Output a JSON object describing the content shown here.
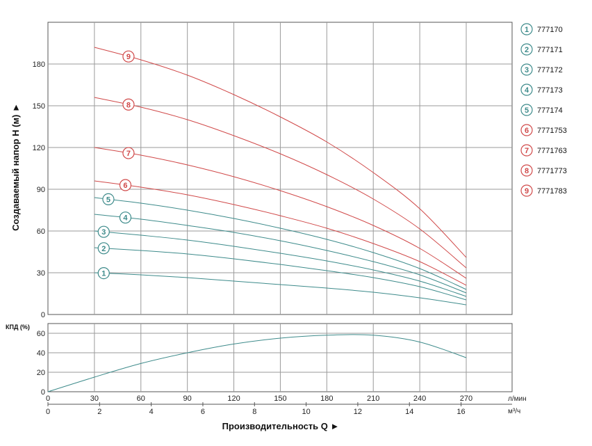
{
  "colors": {
    "blue": "#3c8a8a",
    "red": "#d04848",
    "grid": "#9a9a9a",
    "axis": "#555555"
  },
  "chart_data": [
    {
      "type": "line",
      "ylabel": "Создаваемый напор H (м) ►",
      "ylim": [
        0,
        200
      ],
      "yticks": [
        0,
        30,
        60,
        90,
        120,
        150,
        180
      ],
      "xlim": [
        0,
        270
      ],
      "x_unit": "л/мин",
      "grid": true,
      "legend_position": "right",
      "series": [
        {
          "name": "777170",
          "marker": "1",
          "color": "blue",
          "x": [
            30,
            60,
            90,
            120,
            150,
            180,
            210,
            240,
            270
          ],
          "y": [
            30,
            28.5,
            26.5,
            24,
            21.5,
            19,
            16,
            12,
            7
          ]
        },
        {
          "name": "777171",
          "marker": "2",
          "color": "blue",
          "x": [
            30,
            60,
            90,
            120,
            150,
            180,
            210,
            240,
            270
          ],
          "y": [
            48,
            46,
            43.5,
            40,
            36,
            31.5,
            26.5,
            20,
            10.5
          ]
        },
        {
          "name": "777172",
          "marker": "3",
          "color": "blue",
          "x": [
            30,
            60,
            90,
            120,
            150,
            180,
            210,
            240,
            270
          ],
          "y": [
            60,
            57,
            53.5,
            49,
            44,
            38.5,
            32,
            24,
            13
          ]
        },
        {
          "name": "777173",
          "marker": "4",
          "color": "blue",
          "x": [
            30,
            60,
            90,
            120,
            150,
            180,
            210,
            240,
            270
          ],
          "y": [
            72,
            68.5,
            64,
            59,
            53,
            46,
            38,
            28.5,
            15.5
          ]
        },
        {
          "name": "777174",
          "marker": "5",
          "color": "blue",
          "x": [
            30,
            60,
            90,
            120,
            150,
            180,
            210,
            240,
            270
          ],
          "y": [
            84,
            80,
            75,
            69,
            62,
            54,
            44.5,
            33,
            18
          ]
        },
        {
          "name": "7771753",
          "marker": "6",
          "color": "red",
          "x": [
            30,
            60,
            90,
            120,
            150,
            180,
            210,
            240,
            270
          ],
          "y": [
            96,
            91.5,
            86,
            79,
            71,
            62,
            51,
            38,
            21
          ]
        },
        {
          "name": "7771763",
          "marker": "7",
          "color": "red",
          "x": [
            30,
            60,
            90,
            120,
            150,
            180,
            210,
            240,
            270
          ],
          "y": [
            120,
            114.5,
            107.5,
            99,
            89,
            77.5,
            64,
            47.5,
            26
          ]
        },
        {
          "name": "7771773",
          "marker": "8",
          "color": "red",
          "x": [
            30,
            60,
            90,
            120,
            150,
            180,
            210,
            240,
            270
          ],
          "y": [
            156,
            149,
            140,
            128.5,
            115.5,
            100.5,
            83,
            61.5,
            33.5
          ]
        },
        {
          "name": "7771783",
          "marker": "9",
          "color": "red",
          "x": [
            30,
            60,
            90,
            120,
            150,
            180,
            210,
            240,
            270
          ],
          "y": [
            192,
            183,
            172,
            158,
            142,
            124,
            102,
            76,
            41
          ]
        }
      ]
    },
    {
      "type": "line",
      "ylabel": "КПД (%)",
      "ylim": [
        0,
        70
      ],
      "yticks": [
        0,
        20,
        40,
        60
      ],
      "xlim": [
        0,
        270
      ],
      "grid": true,
      "series": [
        {
          "x": [
            0,
            30,
            60,
            90,
            120,
            150,
            180,
            210,
            240,
            270
          ],
          "y": [
            0,
            15,
            29,
            40,
            49,
            55,
            58,
            58,
            51,
            35
          ]
        }
      ]
    }
  ],
  "axes": {
    "x_lpm_ticks": [
      0,
      30,
      60,
      90,
      120,
      150,
      180,
      210,
      240,
      270
    ],
    "x_m3h_ticks": [
      0,
      2,
      4,
      6,
      8,
      10,
      12,
      14,
      16
    ],
    "x_lpm_unit": "л/мин",
    "x_m3h_unit": "м³/ч",
    "xlabel": "Производительность Q ►"
  },
  "legend": [
    {
      "marker": "1",
      "label": "777170",
      "color": "blue"
    },
    {
      "marker": "2",
      "label": "777171",
      "color": "blue"
    },
    {
      "marker": "3",
      "label": "777172",
      "color": "blue"
    },
    {
      "marker": "4",
      "label": "777173",
      "color": "blue"
    },
    {
      "marker": "5",
      "label": "777174",
      "color": "blue"
    },
    {
      "marker": "6",
      "label": "7771753",
      "color": "red"
    },
    {
      "marker": "7",
      "label": "7771763",
      "color": "red"
    },
    {
      "marker": "8",
      "label": "7771773",
      "color": "red"
    },
    {
      "marker": "9",
      "label": "7771783",
      "color": "red"
    }
  ]
}
